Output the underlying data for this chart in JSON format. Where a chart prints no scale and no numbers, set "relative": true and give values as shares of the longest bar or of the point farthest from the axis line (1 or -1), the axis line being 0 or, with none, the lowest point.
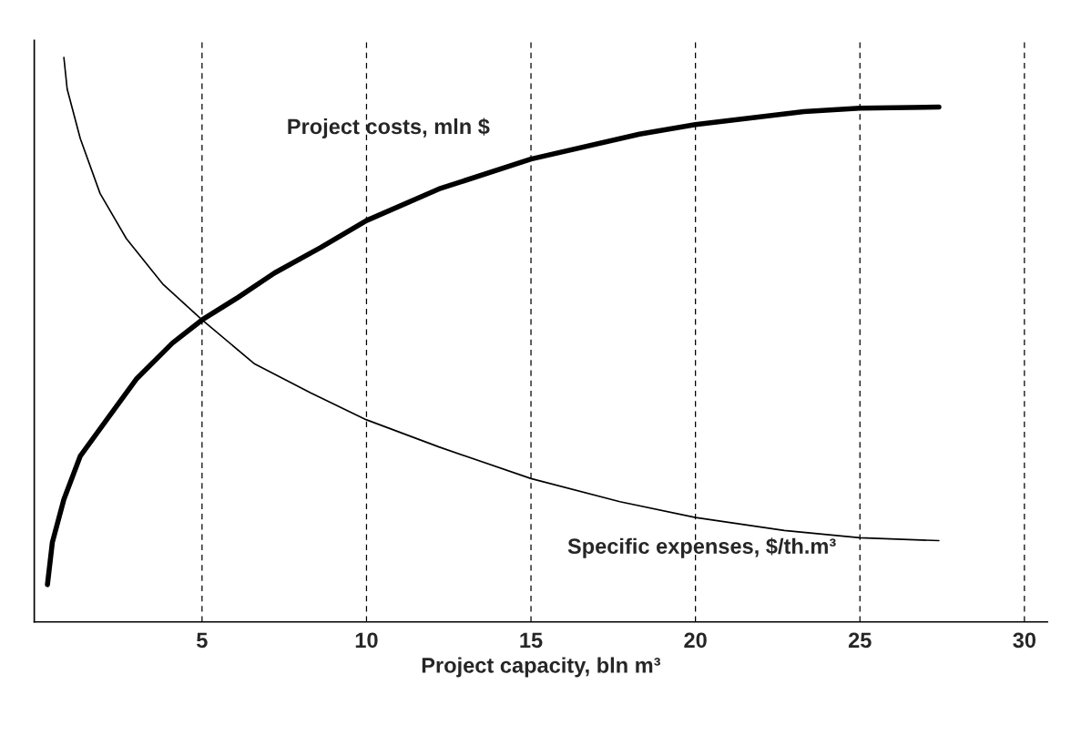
{
  "chart_data": {
    "type": "line",
    "relative": true,
    "xlabel": "Project capacity, bln m³",
    "xlim": [
      -0.1,
      30.7
    ],
    "xticks": [
      5,
      10,
      15,
      20,
      25,
      30
    ],
    "grid": "x",
    "tick_labels": "x",
    "legend": false,
    "series": [
      {
        "name": "Project costs, mln $",
        "color": "#000000",
        "x": [
          0.3,
          0.45,
          0.8,
          1.3,
          2.1,
          3.0,
          4.1,
          5.0,
          6.1,
          7.2,
          8.6,
          10,
          12.2,
          15,
          18.3,
          20,
          23.3,
          25,
          27.4
        ],
        "values": [
          0.066,
          0.141,
          0.217,
          0.294,
          0.358,
          0.43,
          0.494,
          0.535,
          0.575,
          0.618,
          0.663,
          0.711,
          0.767,
          0.82,
          0.864,
          0.881,
          0.904,
          0.91,
          0.912
        ]
      },
      {
        "name": "Specific expenses, $/th.m³",
        "color": "#000000",
        "x": [
          0.8,
          0.9,
          1.3,
          1.9,
          2.7,
          3.8,
          5.0,
          6.6,
          8.3,
          10,
          12.2,
          15,
          17.7,
          20,
          22.7,
          25,
          27.4
        ],
        "values": [
          1.0,
          0.944,
          0.856,
          0.759,
          0.679,
          0.599,
          0.535,
          0.457,
          0.406,
          0.358,
          0.31,
          0.254,
          0.213,
          0.185,
          0.162,
          0.149,
          0.144
        ]
      }
    ]
  }
}
